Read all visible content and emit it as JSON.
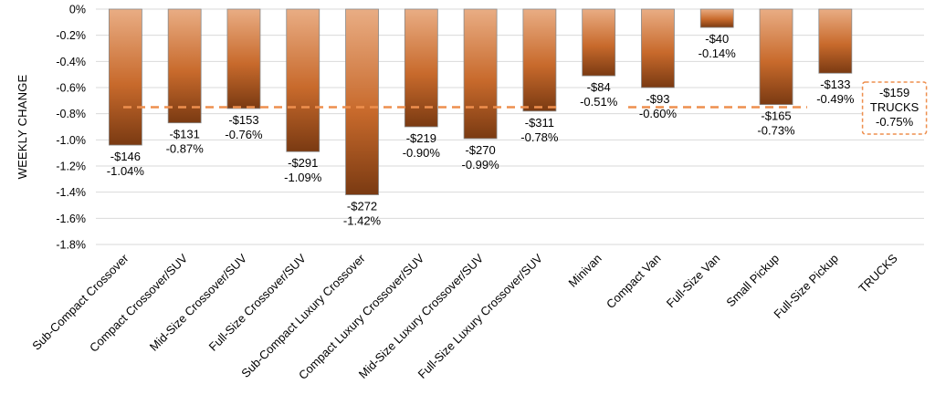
{
  "chart_data": {
    "type": "bar",
    "title": "",
    "xlabel": "",
    "ylabel": "WEEKLY CHANGE",
    "ylim": [
      -1.8,
      0
    ],
    "yticks": [
      "0%",
      "-0.2%",
      "-0.4%",
      "-0.6%",
      "-0.8%",
      "-1.0%",
      "-1.2%",
      "-1.4%",
      "-1.6%",
      "-1.8%"
    ],
    "ytick_values": [
      0,
      -0.2,
      -0.4,
      -0.6,
      -0.8,
      -1.0,
      -1.2,
      -1.4,
      -1.6,
      -1.8
    ],
    "categories": [
      "Sub-Compact Crossover",
      "Compact Crossover/SUV",
      "Mid-Size Crossover/SUV",
      "Full-Size Crossover/SUV",
      "Sub-Compact Luxury Crossover",
      "Compact Luxury Crossover/SUV",
      "Mid-Size Luxury Crossover/SUV",
      "Full-Size Luxury Crossover/SUV",
      "Minivan",
      "Compact Van",
      "Full-Size Van",
      "Small Pickup",
      "Full-Size Pickup",
      "TRUCKS"
    ],
    "values": [
      -1.04,
      -0.87,
      -0.76,
      -1.09,
      -1.42,
      -0.9,
      -0.99,
      -0.78,
      -0.51,
      -0.6,
      -0.14,
      -0.73,
      -0.49,
      null
    ],
    "dollar_labels": [
      "-$146",
      "-$131",
      "-$153",
      "-$291",
      "-$272",
      "-$219",
      "-$270",
      "-$311",
      "-$84",
      "-$93",
      "-$40",
      "-$165",
      "-$133",
      "-$159"
    ],
    "percent_labels": [
      "-1.04%",
      "-0.87%",
      "-0.76%",
      "-1.09%",
      "-1.42%",
      "-0.90%",
      "-0.99%",
      "-0.78%",
      "-0.51%",
      "-0.60%",
      "-0.14%",
      "-0.73%",
      "-0.49%",
      "-0.75%"
    ],
    "reference_line": {
      "value": -0.75,
      "dollar_label": "-$159",
      "name_label": "TRUCKS",
      "percent_label": "-0.75%"
    },
    "grid": true,
    "legend": "none"
  },
  "colors": {
    "bar_top": "#e9ad84",
    "bar_mid": "#c86a2c",
    "bar_bottom": "#7a3a12",
    "bar_edge": "#8a8a8a",
    "reference_line": "#ee8f4e",
    "gridline": "#d9d9d9"
  }
}
